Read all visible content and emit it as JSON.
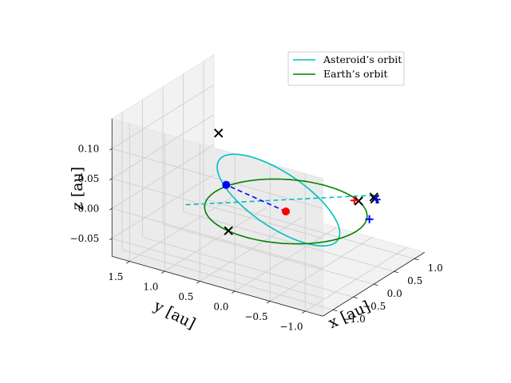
{
  "chart_data": {
    "type": "scatter",
    "projection": "3d",
    "xlabel": "x [au]",
    "ylabel": "y [au]",
    "zlabel": "z [au]",
    "xlim": [
      -1.25,
      1.25
    ],
    "ylim": [
      -1.25,
      1.75
    ],
    "zlim": [
      -0.08,
      0.15
    ],
    "xticks": [
      -1.0,
      -0.5,
      0.0,
      0.5,
      1.0
    ],
    "xtick_labels": [
      "−1.0",
      "−0.5",
      "0.0",
      "0.5",
      "1.0"
    ],
    "yticks": [
      -1.0,
      -0.5,
      0.0,
      0.5,
      1.0,
      1.5
    ],
    "ytick_labels": [
      "−1.0",
      "−0.5",
      "0.0",
      "0.5",
      "1.0",
      "1.5"
    ],
    "zticks": [
      -0.05,
      0.0,
      0.05,
      0.1
    ],
    "ztick_labels": [
      "−0.05",
      "0.00",
      "0.05",
      "0.10"
    ],
    "grid": true,
    "legend_position": "top-right",
    "series": [
      {
        "name": "Asteroid’s orbit",
        "type": "line",
        "color": "#00bfbf",
        "ellipse": {
          "center": [
            0.25,
            0.25,
            0.0
          ],
          "a": 1.35,
          "b": 0.7,
          "rotation_deg": 45,
          "inclination_deg": 8
        }
      },
      {
        "name": "Earth’s orbit",
        "type": "line",
        "color": "#008000",
        "ellipse": {
          "center": [
            0.0,
            0.0,
            0.0
          ],
          "a": 1.0,
          "b": 1.0,
          "rotation_deg": 0,
          "inclination_deg": 0
        }
      }
    ],
    "node_line": {
      "color": "#00bfbf",
      "style": "dashed",
      "from": [
        1.11,
        -0.61,
        0.0
      ],
      "to": [
        -0.61,
        1.11,
        0.0
      ]
    },
    "sun_earth_line": {
      "color": "#0000ff",
      "style": "dashed",
      "from": [
        0.0,
        0.0,
        0.0
      ],
      "to": [
        0.26,
        1.0,
        0.0
      ]
    },
    "markers": [
      {
        "symbol": "x",
        "color": "#000000",
        "points": [
          [
            -0.29,
            0.79,
            0.117
          ],
          [
            -0.96,
            0.26,
            0.0
          ],
          [
            0.84,
            -0.55,
            0.0
          ],
          [
            1.08,
            -0.64,
            -0.004
          ],
          [
            1.11,
            -0.61,
            -0.003
          ]
        ]
      },
      {
        "symbol": "+",
        "color": "#0000ff",
        "points": [
          [
            0.43,
            -0.94,
            0.0
          ],
          [
            1.45,
            -0.45,
            -0.027
          ]
        ]
      },
      {
        "symbol": "+",
        "color": "#ff0000",
        "points": [
          [
            0.82,
            -0.5,
            0.0
          ]
        ]
      },
      {
        "symbol": "o",
        "color": "#0000ff",
        "points": [
          [
            0.26,
            1.0,
            0.0
          ]
        ]
      },
      {
        "symbol": "o",
        "color": "#ff0000",
        "points": [
          [
            0.0,
            0.0,
            0.0
          ]
        ]
      }
    ]
  }
}
